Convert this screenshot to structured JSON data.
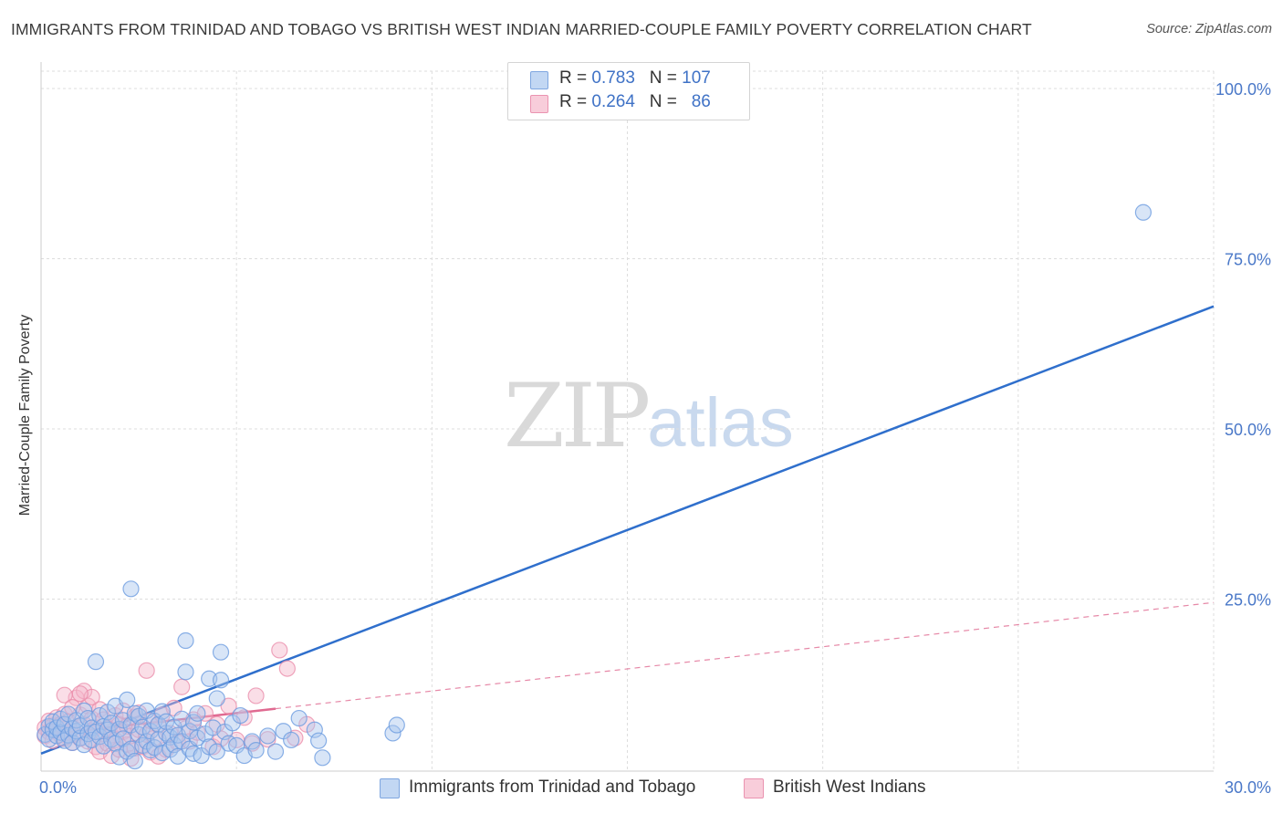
{
  "title": "IMMIGRANTS FROM TRINIDAD AND TOBAGO VS BRITISH WEST INDIAN MARRIED-COUPLE FAMILY POVERTY CORRELATION CHART",
  "source": "Source: ZipAtlas.com",
  "watermark": {
    "zip": "ZIP",
    "atlas": "atlas"
  },
  "legend": {
    "blue": {
      "r_label": "R =",
      "r_value": "0.783",
      "n_label": "N =",
      "n_value": "107"
    },
    "pink": {
      "r_label": "R =",
      "r_value": "0.264",
      "n_label": "N =",
      "n_value": "86"
    }
  },
  "colors": {
    "blue_fill": "#a9c6ee",
    "blue_stroke": "#6d9ce0",
    "blue_line": "#2f6fcc",
    "pink_fill": "#f4b6c9",
    "pink_stroke": "#e989a8",
    "pink_line": "#e06a91",
    "grid": "#dddddd",
    "tick_text": "#4a78c8"
  },
  "chart_data": {
    "type": "scatter",
    "title": "IMMIGRANTS FROM TRINIDAD AND TOBAGO VS BRITISH WEST INDIAN MARRIED-COUPLE FAMILY POVERTY CORRELATION CHART",
    "xlabel": "",
    "ylabel": "Married-Couple Family Poverty",
    "xlim": [
      0,
      30
    ],
    "ylim": [
      0,
      105
    ],
    "x_tick_labels": [
      {
        "value": 0,
        "label": "0.0%"
      },
      {
        "value": 30,
        "label": "30.0%"
      }
    ],
    "y_tick_labels": [
      {
        "value": 25,
        "label": "25.0%"
      },
      {
        "value": 50,
        "label": "50.0%"
      },
      {
        "value": 75,
        "label": "75.0%"
      },
      {
        "value": 100,
        "label": "100.0%"
      }
    ],
    "series": [
      {
        "name": "Immigrants from Trinidad and Tobago",
        "color": "#a9c6ee",
        "r": 0.783,
        "n": 107,
        "points": [
          [
            0.1,
            5.1
          ],
          [
            0.2,
            6.3
          ],
          [
            0.2,
            4.4
          ],
          [
            0.3,
            5.8
          ],
          [
            0.3,
            7.0
          ],
          [
            0.4,
            4.9
          ],
          [
            0.4,
            6.1
          ],
          [
            0.5,
            5.4
          ],
          [
            0.5,
            7.4
          ],
          [
            0.6,
            4.2
          ],
          [
            0.6,
            6.6
          ],
          [
            0.7,
            5.0
          ],
          [
            0.7,
            8.1
          ],
          [
            0.8,
            3.9
          ],
          [
            0.8,
            6.0
          ],
          [
            0.9,
            5.6
          ],
          [
            0.9,
            7.2
          ],
          [
            1.0,
            4.6
          ],
          [
            1.0,
            6.4
          ],
          [
            1.1,
            3.6
          ],
          [
            1.1,
            8.6
          ],
          [
            1.2,
            5.2
          ],
          [
            1.2,
            7.5
          ],
          [
            1.3,
            6.1
          ],
          [
            1.3,
            4.3
          ],
          [
            1.4,
            5.5
          ],
          [
            1.4,
            15.8
          ],
          [
            1.5,
            7.9
          ],
          [
            1.5,
            4.8
          ],
          [
            1.6,
            6.3
          ],
          [
            1.6,
            3.4
          ],
          [
            1.7,
            5.8
          ],
          [
            1.7,
            8.4
          ],
          [
            1.8,
            4.4
          ],
          [
            1.8,
            6.8
          ],
          [
            1.9,
            9.3
          ],
          [
            1.9,
            3.8
          ],
          [
            2.0,
            5.9
          ],
          [
            2.0,
            1.8
          ],
          [
            2.1,
            7.2
          ],
          [
            2.1,
            4.5
          ],
          [
            2.2,
            10.2
          ],
          [
            2.2,
            2.6
          ],
          [
            2.3,
            6.5
          ],
          [
            2.3,
            3.0
          ],
          [
            2.4,
            8.2
          ],
          [
            2.4,
            1.2
          ],
          [
            2.5,
            5.1
          ],
          [
            2.5,
            7.8
          ],
          [
            2.6,
            3.5
          ],
          [
            2.6,
            6.2
          ],
          [
            2.7,
            4.1
          ],
          [
            2.7,
            8.6
          ],
          [
            2.8,
            2.8
          ],
          [
            2.8,
            5.6
          ],
          [
            2.9,
            7.1
          ],
          [
            2.9,
            3.2
          ],
          [
            3.0,
            6.6
          ],
          [
            3.0,
            4.4
          ],
          [
            3.1,
            8.5
          ],
          [
            3.1,
            2.4
          ],
          [
            3.2,
            5.3
          ],
          [
            3.2,
            7.0
          ],
          [
            3.3,
            4.7
          ],
          [
            3.3,
            2.9
          ],
          [
            3.4,
            6.2
          ],
          [
            3.4,
            3.6
          ],
          [
            3.5,
            5.0
          ],
          [
            3.5,
            1.9
          ],
          [
            3.6,
            7.4
          ],
          [
            3.6,
            4.1
          ],
          [
            3.7,
            14.3
          ],
          [
            3.7,
            18.9
          ],
          [
            3.8,
            5.6
          ],
          [
            3.8,
            3.0
          ],
          [
            3.9,
            6.9
          ],
          [
            3.9,
            2.3
          ],
          [
            4.0,
            4.6
          ],
          [
            4.0,
            8.2
          ],
          [
            4.1,
            2.0
          ],
          [
            4.2,
            5.2
          ],
          [
            4.3,
            13.3
          ],
          [
            4.3,
            3.3
          ],
          [
            4.4,
            6.1
          ],
          [
            4.5,
            10.4
          ],
          [
            4.5,
            2.6
          ],
          [
            4.6,
            13.1
          ],
          [
            4.6,
            17.2
          ],
          [
            4.7,
            5.5
          ],
          [
            4.8,
            3.8
          ],
          [
            4.9,
            6.8
          ],
          [
            5.0,
            3.5
          ],
          [
            5.1,
            7.9
          ],
          [
            5.2,
            2.0
          ],
          [
            5.4,
            4.1
          ],
          [
            5.5,
            2.8
          ],
          [
            5.8,
            4.9
          ],
          [
            6.0,
            2.6
          ],
          [
            6.2,
            5.6
          ],
          [
            6.4,
            4.3
          ],
          [
            6.6,
            7.5
          ],
          [
            7.0,
            5.8
          ],
          [
            7.1,
            4.2
          ],
          [
            7.2,
            1.7
          ],
          [
            9.0,
            5.3
          ],
          [
            9.1,
            6.5
          ],
          [
            28.2,
            81.8
          ],
          [
            2.3,
            26.5
          ]
        ],
        "trend": {
          "x": [
            0,
            30
          ],
          "y": [
            2.3,
            68.0
          ]
        }
      },
      {
        "name": "British West Indians",
        "color": "#f4b6c9",
        "r": 0.264,
        "n": 86,
        "points": [
          [
            0.1,
            6.1
          ],
          [
            0.1,
            4.9
          ],
          [
            0.2,
            5.5
          ],
          [
            0.2,
            7.1
          ],
          [
            0.3,
            6.4
          ],
          [
            0.3,
            4.2
          ],
          [
            0.4,
            5.8
          ],
          [
            0.4,
            7.6
          ],
          [
            0.5,
            5.0
          ],
          [
            0.5,
            6.6
          ],
          [
            0.6,
            4.5
          ],
          [
            0.6,
            8.1
          ],
          [
            0.7,
            5.4
          ],
          [
            0.7,
            7.0
          ],
          [
            0.8,
            3.9
          ],
          [
            0.8,
            6.0
          ],
          [
            0.9,
            5.1
          ],
          [
            0.9,
            10.5
          ],
          [
            1.0,
            8.0
          ],
          [
            1.0,
            4.5
          ],
          [
            1.1,
            6.6
          ],
          [
            1.1,
            11.5
          ],
          [
            1.2,
            9.3
          ],
          [
            1.2,
            4.1
          ],
          [
            1.3,
            7.4
          ],
          [
            1.3,
            5.6
          ],
          [
            1.4,
            3.3
          ],
          [
            1.4,
            6.1
          ],
          [
            1.5,
            8.8
          ],
          [
            1.5,
            2.6
          ],
          [
            1.6,
            5.2
          ],
          [
            1.6,
            7.3
          ],
          [
            1.7,
            3.8
          ],
          [
            1.7,
            6.0
          ],
          [
            1.8,
            2.0
          ],
          [
            1.8,
            5.0
          ],
          [
            1.9,
            7.9
          ],
          [
            1.9,
            4.3
          ],
          [
            2.0,
            6.6
          ],
          [
            2.0,
            2.9
          ],
          [
            2.1,
            5.5
          ],
          [
            2.1,
            8.6
          ],
          [
            2.2,
            3.6
          ],
          [
            2.2,
            6.3
          ],
          [
            2.3,
            4.9
          ],
          [
            2.3,
            1.6
          ],
          [
            2.4,
            7.7
          ],
          [
            2.4,
            3.1
          ],
          [
            2.5,
            5.8
          ],
          [
            2.5,
            8.3
          ],
          [
            2.6,
            3.3
          ],
          [
            2.7,
            5.1
          ],
          [
            2.7,
            14.5
          ],
          [
            2.8,
            7.1
          ],
          [
            2.8,
            2.5
          ],
          [
            2.9,
            4.6
          ],
          [
            3.0,
            6.5
          ],
          [
            3.0,
            1.9
          ],
          [
            3.1,
            8.0
          ],
          [
            3.2,
            2.9
          ],
          [
            3.3,
            5.3
          ],
          [
            3.4,
            9.0
          ],
          [
            3.5,
            3.9
          ],
          [
            3.6,
            12.1
          ],
          [
            3.7,
            6.0
          ],
          [
            3.8,
            4.1
          ],
          [
            3.9,
            7.3
          ],
          [
            4.0,
            5.4
          ],
          [
            4.2,
            8.2
          ],
          [
            4.4,
            3.3
          ],
          [
            4.5,
            6.6
          ],
          [
            4.6,
            4.5
          ],
          [
            4.8,
            9.3
          ],
          [
            5.0,
            4.3
          ],
          [
            5.2,
            7.6
          ],
          [
            5.4,
            3.8
          ],
          [
            5.5,
            10.8
          ],
          [
            5.8,
            4.4
          ],
          [
            6.1,
            17.5
          ],
          [
            6.3,
            14.8
          ],
          [
            6.5,
            4.6
          ],
          [
            6.8,
            6.6
          ],
          [
            1.3,
            10.6
          ],
          [
            0.6,
            10.9
          ],
          [
            0.8,
            9.1
          ],
          [
            1.0,
            11.1
          ]
        ],
        "trend": {
          "x": [
            0,
            30
          ],
          "y": [
            5.0,
            24.5
          ]
        },
        "trend_solid_until_x": 6
      }
    ]
  },
  "bottom_legend": {
    "blue_label": "Immigrants from Trinidad and Tobago",
    "pink_label": "British West Indians"
  }
}
